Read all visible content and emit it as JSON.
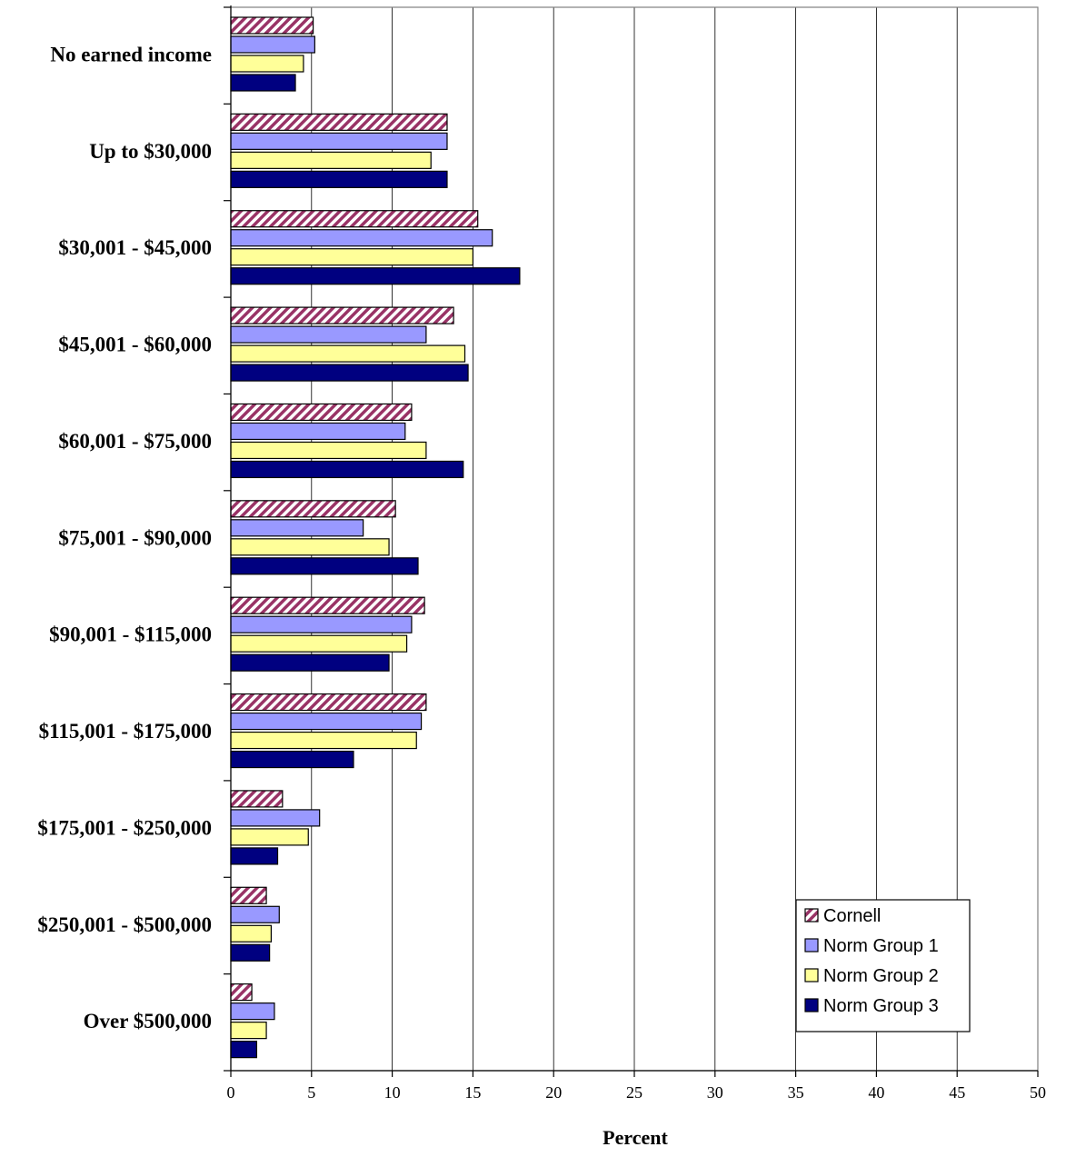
{
  "chart_data": {
    "type": "bar",
    "orientation": "horizontal",
    "categories": [
      "No earned income",
      "Up to $30,000",
      "$30,001 - $45,000",
      "$45,001 - $60,000",
      "$60,001 - $75,000",
      "$75,001 - $90,000",
      "$90,001 - $115,000",
      "$115,001 - $175,000",
      "$175,001 - $250,000",
      "$250,001 - $500,000",
      "Over $500,000"
    ],
    "series": [
      {
        "name": "Cornell",
        "color": "#993366",
        "pattern": "diagonal-stripes",
        "values": [
          5.1,
          13.4,
          15.3,
          13.8,
          11.2,
          10.2,
          12.0,
          12.1,
          3.2,
          2.2,
          1.3
        ]
      },
      {
        "name": "Norm Group 1",
        "color": "#9999ff",
        "values": [
          5.2,
          13.4,
          16.2,
          12.1,
          10.8,
          8.2,
          11.2,
          11.8,
          5.5,
          3.0,
          2.7
        ]
      },
      {
        "name": "Norm Group 2",
        "color": "#ffff99",
        "values": [
          4.5,
          12.4,
          15.0,
          14.5,
          12.1,
          9.8,
          10.9,
          11.5,
          4.8,
          2.5,
          2.2
        ]
      },
      {
        "name": "Norm Group 3",
        "color": "#000080",
        "values": [
          4.0,
          13.4,
          17.9,
          14.7,
          14.4,
          11.6,
          9.8,
          7.6,
          2.9,
          2.4,
          1.6
        ]
      }
    ],
    "xlabel": "Percent",
    "ylabel": "",
    "title": "",
    "xlim": [
      0,
      50
    ],
    "x_ticks": [
      "0",
      "5",
      "10",
      "15",
      "20",
      "25",
      "30",
      "35",
      "40",
      "45",
      "50"
    ],
    "grid": "vertical",
    "legend_position": "bottom-right"
  }
}
